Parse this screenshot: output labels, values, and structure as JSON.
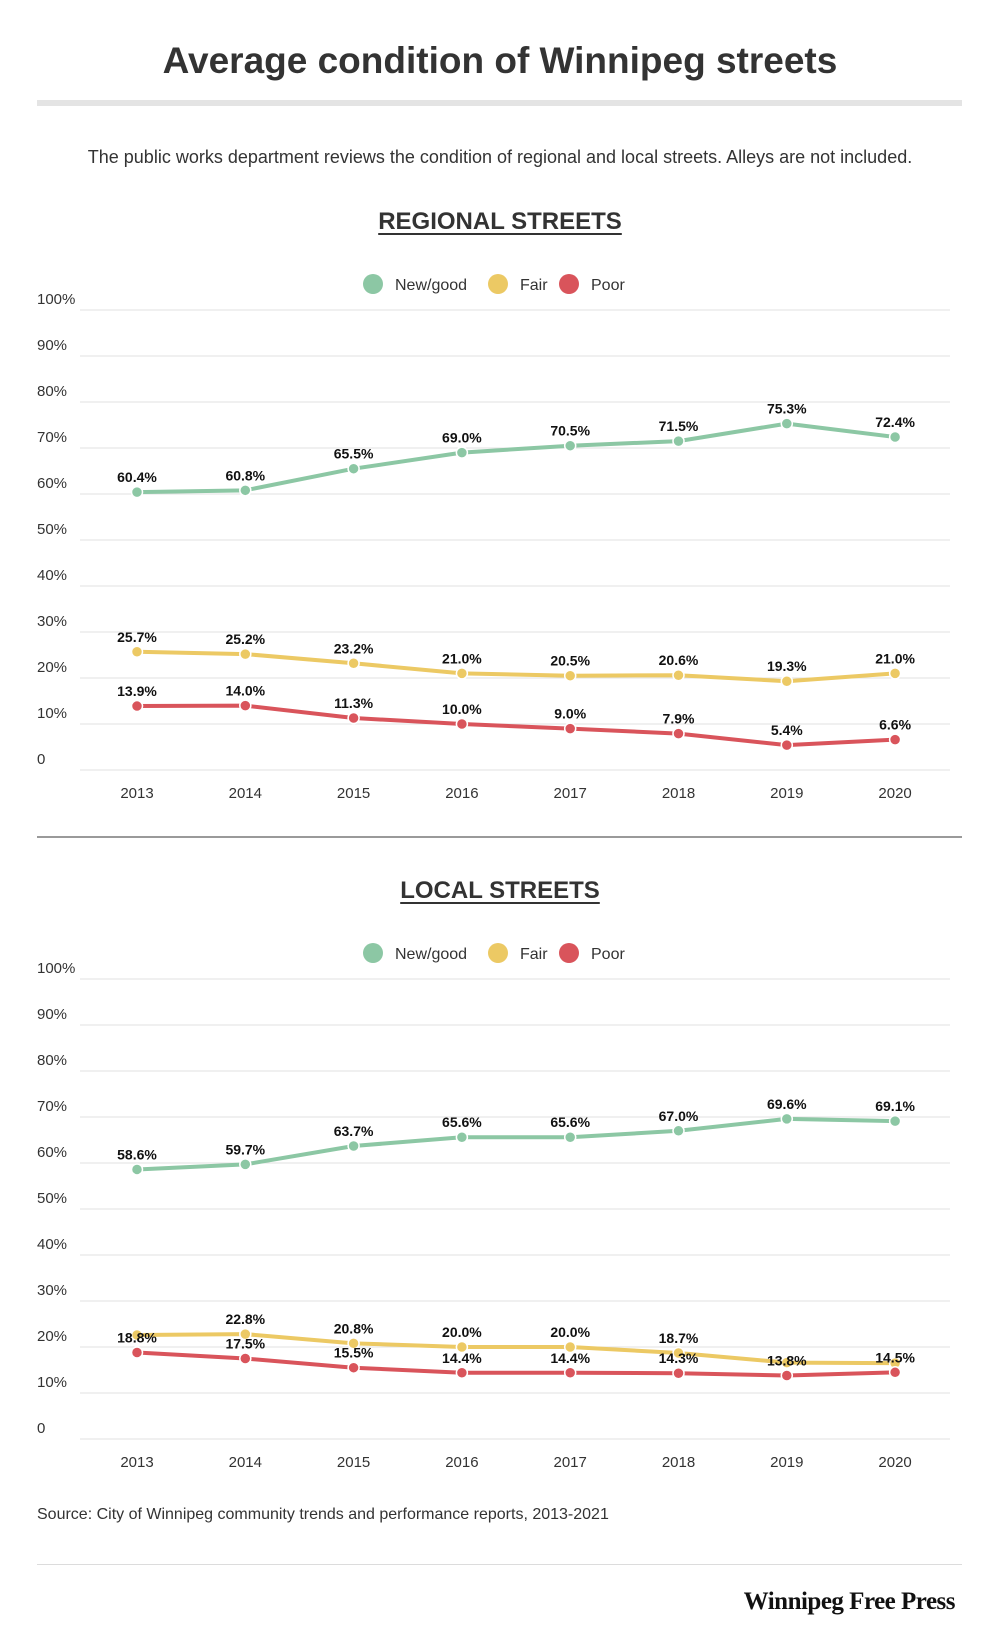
{
  "header": {
    "title": "Average condition of Winnipeg streets",
    "subtitle": "The public works department reviews the condition of regional and local streets.  Alleys are not included."
  },
  "colors": {
    "new_good": "#8cc7a4",
    "fair": "#ecc964",
    "poor": "#d9545b"
  },
  "chart_data": [
    {
      "type": "line",
      "title": "REGIONAL STREETS",
      "categories": [
        "2013",
        "2014",
        "2015",
        "2016",
        "2017",
        "2018",
        "2019",
        "2020"
      ],
      "ylim": [
        0,
        100
      ],
      "yticks": [
        "0",
        "10%",
        "20%",
        "30%",
        "40%",
        "50%",
        "60%",
        "70%",
        "80%",
        "90%",
        "100%"
      ],
      "grid": true,
      "legend": "top-center",
      "series": [
        {
          "name": "New/good",
          "key": "new_good",
          "values": [
            60.4,
            60.8,
            65.5,
            69.0,
            70.5,
            71.5,
            75.3,
            72.4
          ],
          "labels": [
            "60.4%",
            "60.8%",
            "65.5%",
            "69.0%",
            "70.5%",
            "71.5%",
            "75.3%",
            "72.4%"
          ]
        },
        {
          "name": "Fair",
          "key": "fair",
          "values": [
            25.7,
            25.2,
            23.2,
            21.0,
            20.5,
            20.6,
            19.3,
            21.0
          ],
          "labels": [
            "25.7%",
            "25.2%",
            "23.2%",
            "21.0%",
            "20.5%",
            "20.6%",
            "19.3%",
            "21.0%"
          ]
        },
        {
          "name": "Poor",
          "key": "poor",
          "values": [
            13.9,
            14.0,
            11.3,
            10.0,
            9.0,
            7.9,
            5.4,
            6.6
          ],
          "labels": [
            "13.9%",
            "14.0%",
            "11.3%",
            "10.0%",
            "9.0%",
            "7.9%",
            "5.4%",
            "6.6%"
          ]
        }
      ]
    },
    {
      "type": "line",
      "title": "LOCAL STREETS",
      "categories": [
        "2013",
        "2014",
        "2015",
        "2016",
        "2017",
        "2018",
        "2019",
        "2020"
      ],
      "ylim": [
        0,
        100
      ],
      "yticks": [
        "0",
        "10%",
        "20%",
        "30%",
        "40%",
        "50%",
        "60%",
        "70%",
        "80%",
        "90%",
        "100%"
      ],
      "grid": true,
      "legend": "top-center",
      "series": [
        {
          "name": "New/good",
          "key": "new_good",
          "values": [
            58.6,
            59.7,
            63.7,
            65.6,
            65.6,
            67.0,
            69.6,
            69.1
          ],
          "labels": [
            "58.6%",
            "59.7%",
            "63.7%",
            "65.6%",
            "65.6%",
            "67.0%",
            "69.6%",
            "69.1%"
          ]
        },
        {
          "name": "Fair",
          "key": "fair",
          "values": [
            22.6,
            22.8,
            20.8,
            20.0,
            20.0,
            18.7,
            16.6,
            16.5
          ],
          "labels": [
            "",
            "22.8%",
            "20.8%",
            "20.0%",
            "20.0%",
            "18.7%",
            "",
            ""
          ]
        },
        {
          "name": "Poor",
          "key": "poor",
          "values": [
            18.8,
            17.5,
            15.5,
            14.4,
            14.4,
            14.3,
            13.8,
            14.5
          ],
          "labels": [
            "18.8%",
            "17.5%",
            "15.5%",
            "14.4%",
            "14.4%",
            "14.3%",
            "13.8%",
            "14.5%"
          ]
        }
      ]
    }
  ],
  "footer": {
    "source": "Source: City of Winnipeg community trends and performance reports, 2013-2021",
    "logo": "Winnipeg Free Press"
  }
}
